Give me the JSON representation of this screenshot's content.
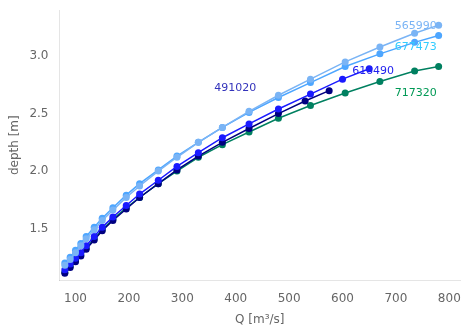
{
  "chart_data": {
    "type": "line",
    "x_label": "Q [m³/s]",
    "y_label": "depth [m]",
    "xlim": [
      70,
      820
    ],
    "ylim": [
      1.05,
      3.4
    ],
    "xticks": [
      100,
      200,
      300,
      400,
      500,
      600,
      700,
      800
    ],
    "yticks": [
      1.5,
      {
        "value": 2.0,
        "label": "2.0"
      },
      2.5,
      {
        "value": 3.0,
        "label": "3.0"
      }
    ],
    "grid": false,
    "marker": "circle",
    "line_style": "solid",
    "series": [
      {
        "color": "#7ab4f5",
        "x": [
          80,
          90,
          100,
          110,
          120,
          135,
          150,
          170,
          195,
          220,
          255,
          290,
          330,
          375,
          425,
          480,
          540,
          605,
          670,
          735,
          780
        ],
        "values": [
          1.18,
          1.23,
          1.29,
          1.35,
          1.41,
          1.49,
          1.57,
          1.66,
          1.77,
          1.87,
          2.0,
          2.12,
          2.25,
          2.38,
          2.52,
          2.66,
          2.8,
          2.95,
          3.08,
          3.2,
          3.27
        ]
      },
      {
        "color": "#4da6ff",
        "x": [
          80,
          90,
          100,
          110,
          120,
          135,
          150,
          170,
          195,
          220,
          255,
          290,
          330,
          375,
          425,
          480,
          540,
          605,
          670,
          735,
          780
        ],
        "values": [
          1.2,
          1.25,
          1.31,
          1.37,
          1.43,
          1.51,
          1.59,
          1.68,
          1.79,
          1.89,
          2.01,
          2.13,
          2.25,
          2.38,
          2.51,
          2.64,
          2.77,
          2.91,
          3.02,
          3.12,
          3.18
        ]
      },
      {
        "color": "#1a1aff",
        "x": [
          80,
          90,
          100,
          110,
          120,
          135,
          150,
          170,
          195,
          220,
          255,
          290,
          330,
          375,
          425,
          480,
          540,
          600,
          650
        ],
        "values": [
          1.14,
          1.19,
          1.24,
          1.29,
          1.35,
          1.43,
          1.51,
          1.6,
          1.7,
          1.8,
          1.92,
          2.04,
          2.16,
          2.29,
          2.41,
          2.54,
          2.67,
          2.8,
          2.89
        ]
      },
      {
        "color": "#000080",
        "x": [
          80,
          90,
          100,
          110,
          120,
          135,
          150,
          170,
          195,
          220,
          255,
          290,
          330,
          375,
          425,
          480,
          530,
          575
        ],
        "values": [
          1.11,
          1.16,
          1.21,
          1.26,
          1.32,
          1.4,
          1.48,
          1.57,
          1.67,
          1.77,
          1.89,
          2.01,
          2.13,
          2.25,
          2.37,
          2.5,
          2.61,
          2.7
        ]
      },
      {
        "color": "#008060",
        "x": [
          80,
          90,
          100,
          110,
          120,
          135,
          150,
          170,
          195,
          220,
          255,
          290,
          330,
          375,
          425,
          480,
          540,
          605,
          670,
          735,
          780
        ],
        "values": [
          1.12,
          1.17,
          1.22,
          1.27,
          1.33,
          1.41,
          1.49,
          1.58,
          1.68,
          1.77,
          1.89,
          2.0,
          2.12,
          2.23,
          2.34,
          2.46,
          2.57,
          2.68,
          2.78,
          2.87,
          2.91
        ]
      }
    ],
    "annotations": [
      {
        "text": "565990",
        "x": 698,
        "y": 3.26,
        "color": "#7ab4f5"
      },
      {
        "text": "677473",
        "x": 698,
        "y": 3.08,
        "color": "#33ccff"
      },
      {
        "text": "616490",
        "x": 618,
        "y": 2.87,
        "color": "#2222ee"
      },
      {
        "text": "491020",
        "x": 360,
        "y": 2.72,
        "color": "#3333bb"
      },
      {
        "text": "717320",
        "x": 698,
        "y": 2.68,
        "color": "#009955"
      }
    ]
  }
}
